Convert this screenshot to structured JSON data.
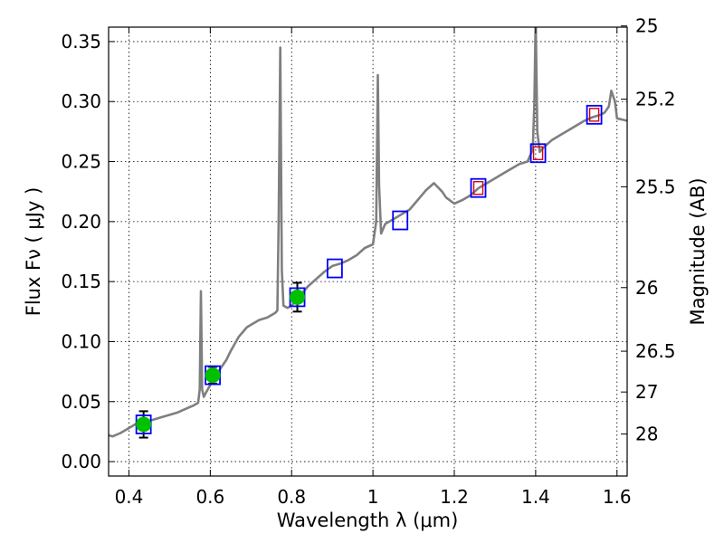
{
  "chart_data": {
    "type": "scatter",
    "xlabel": "Wavelength  λ (μm)",
    "ylabel": "Flux  Fν  ( μJy )",
    "y2label": "Magnitude (AB)",
    "xlim": [
      0.35,
      1.625
    ],
    "ylim": [
      -0.012,
      0.362
    ],
    "xticks": [
      0.4,
      0.6,
      0.8,
      1.0,
      1.2,
      1.4,
      1.6
    ],
    "xtick_labels": [
      "0.4",
      "0.6",
      "0.8",
      "1",
      "1.2",
      "1.4",
      "1.6"
    ],
    "yticks": [
      0.0,
      0.05,
      0.1,
      0.15,
      0.2,
      0.25,
      0.3,
      0.35
    ],
    "ytick_labels": [
      "0.00",
      "0.05",
      "0.10",
      "0.15",
      "0.20",
      "0.25",
      "0.30",
      "0.35"
    ],
    "y2ticks": [
      {
        "label": "25",
        "flux": 0.363
      },
      {
        "label": "25.2",
        "flux": 0.302
      },
      {
        "label": "25.5",
        "flux": 0.229
      },
      {
        "label": "26",
        "flux": 0.145
      },
      {
        "label": "26.5",
        "flux": 0.092
      },
      {
        "label": "27",
        "flux": 0.058
      },
      {
        "label": "28",
        "flux": 0.023
      }
    ],
    "grid": true,
    "colors": {
      "spectrum": "#7f7f7f",
      "detected": "#00c000",
      "model_box": "#0000ff",
      "nir_box": "#d4000f",
      "error_bar": "#000000"
    },
    "spectrum": {
      "x": [
        0.35,
        0.36,
        0.38,
        0.4,
        0.42,
        0.44,
        0.46,
        0.48,
        0.5,
        0.52,
        0.54,
        0.56,
        0.57,
        0.574,
        0.577,
        0.58,
        0.584,
        0.59,
        0.6,
        0.61,
        0.62,
        0.63,
        0.64,
        0.65,
        0.66,
        0.67,
        0.68,
        0.69,
        0.7,
        0.72,
        0.74,
        0.76,
        0.765,
        0.768,
        0.772,
        0.776,
        0.78,
        0.79,
        0.8,
        0.82,
        0.84,
        0.86,
        0.88,
        0.9,
        0.92,
        0.94,
        0.96,
        0.98,
        1.0,
        1.008,
        1.012,
        1.015,
        1.02,
        1.03,
        1.05,
        1.07,
        1.09,
        1.11,
        1.13,
        1.15,
        1.17,
        1.18,
        1.2,
        1.22,
        1.24,
        1.26,
        1.28,
        1.3,
        1.32,
        1.34,
        1.36,
        1.38,
        1.393,
        1.397,
        1.4,
        1.404,
        1.41,
        1.42,
        1.44,
        1.46,
        1.48,
        1.5,
        1.52,
        1.54,
        1.56,
        1.57,
        1.58,
        1.586,
        1.595,
        1.6,
        1.625
      ],
      "y": [
        0.022,
        0.021,
        0.024,
        0.028,
        0.032,
        0.033,
        0.035,
        0.037,
        0.039,
        0.041,
        0.044,
        0.047,
        0.049,
        0.06,
        0.142,
        0.06,
        0.054,
        0.058,
        0.064,
        0.07,
        0.075,
        0.08,
        0.085,
        0.092,
        0.098,
        0.104,
        0.108,
        0.112,
        0.114,
        0.118,
        0.12,
        0.124,
        0.126,
        0.2,
        0.345,
        0.16,
        0.13,
        0.128,
        0.13,
        0.138,
        0.146,
        0.152,
        0.158,
        0.163,
        0.165,
        0.168,
        0.172,
        0.178,
        0.181,
        0.2,
        0.322,
        0.23,
        0.19,
        0.198,
        0.202,
        0.206,
        0.21,
        0.218,
        0.226,
        0.232,
        0.225,
        0.22,
        0.215,
        0.218,
        0.222,
        0.228,
        0.232,
        0.236,
        0.24,
        0.244,
        0.248,
        0.25,
        0.26,
        0.3,
        0.37,
        0.275,
        0.258,
        0.262,
        0.268,
        0.272,
        0.276,
        0.28,
        0.284,
        0.287,
        0.289,
        0.291,
        0.296,
        0.309,
        0.3,
        0.286,
        0.284
      ]
    },
    "photometry": [
      {
        "x": 0.436,
        "y": 0.031,
        "err": 0.011,
        "detected": true,
        "box_color": "model_box"
      },
      {
        "x": 0.606,
        "y": 0.072,
        "err": 0.007,
        "detected": true,
        "box_color": "model_box"
      },
      {
        "x": 0.814,
        "y": 0.137,
        "err": 0.012,
        "detected": true,
        "box_color": "model_box"
      },
      {
        "x": 0.906,
        "y": 0.161,
        "err": 0,
        "detected": false,
        "box_color": "model_box"
      },
      {
        "x": 1.067,
        "y": 0.201,
        "err": 0,
        "detected": false,
        "box_color": "model_box"
      },
      {
        "x": 1.259,
        "y": 0.228,
        "err": 0,
        "detected": false,
        "box_color": "nir_box"
      },
      {
        "x": 1.406,
        "y": 0.257,
        "err": 0,
        "detected": false,
        "box_color": "nir_box"
      },
      {
        "x": 1.544,
        "y": 0.289,
        "err": 0,
        "detected": false,
        "box_color": "nir_box"
      }
    ]
  }
}
